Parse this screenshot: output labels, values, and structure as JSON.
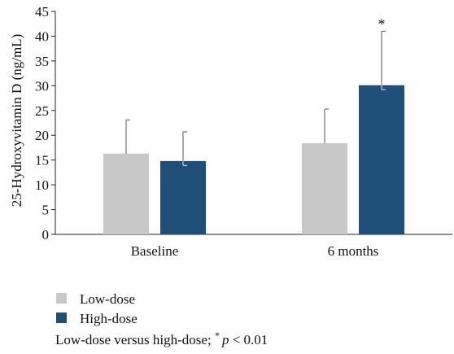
{
  "chart_data": {
    "type": "bar",
    "ylabel": "25-Hydroxyvitamin D (ng/mL)",
    "xlabel": "",
    "ylim": [
      0,
      45
    ],
    "yticks": [
      0,
      5,
      10,
      15,
      20,
      25,
      30,
      35,
      40,
      45
    ],
    "ytick_labels": [
      "0",
      "5",
      "10",
      "15",
      "20",
      "25",
      "30",
      "35",
      "40",
      "45"
    ],
    "categories": [
      "Baseline",
      "6 months"
    ],
    "grid": false,
    "legend_position": "bottom-left",
    "series": [
      {
        "name": "Low-dose",
        "color": "#c8c8c8",
        "values": [
          16.3,
          18.4
        ],
        "error_upper": [
          23.1,
          25.3
        ]
      },
      {
        "name": "High-dose",
        "color": "#1f4e79",
        "values": [
          14.8,
          30.1
        ],
        "error_upper": [
          20.7,
          41.0
        ],
        "error_lower": [
          13.9,
          29.2
        ]
      }
    ],
    "annotations": [
      {
        "text": "*",
        "category": "6 months",
        "series": "High-dose"
      }
    ],
    "footnote": {
      "prefix": "Low-dose versus high-dose; ",
      "star": "*",
      "p": "p",
      "rest": " < 0.01"
    }
  }
}
